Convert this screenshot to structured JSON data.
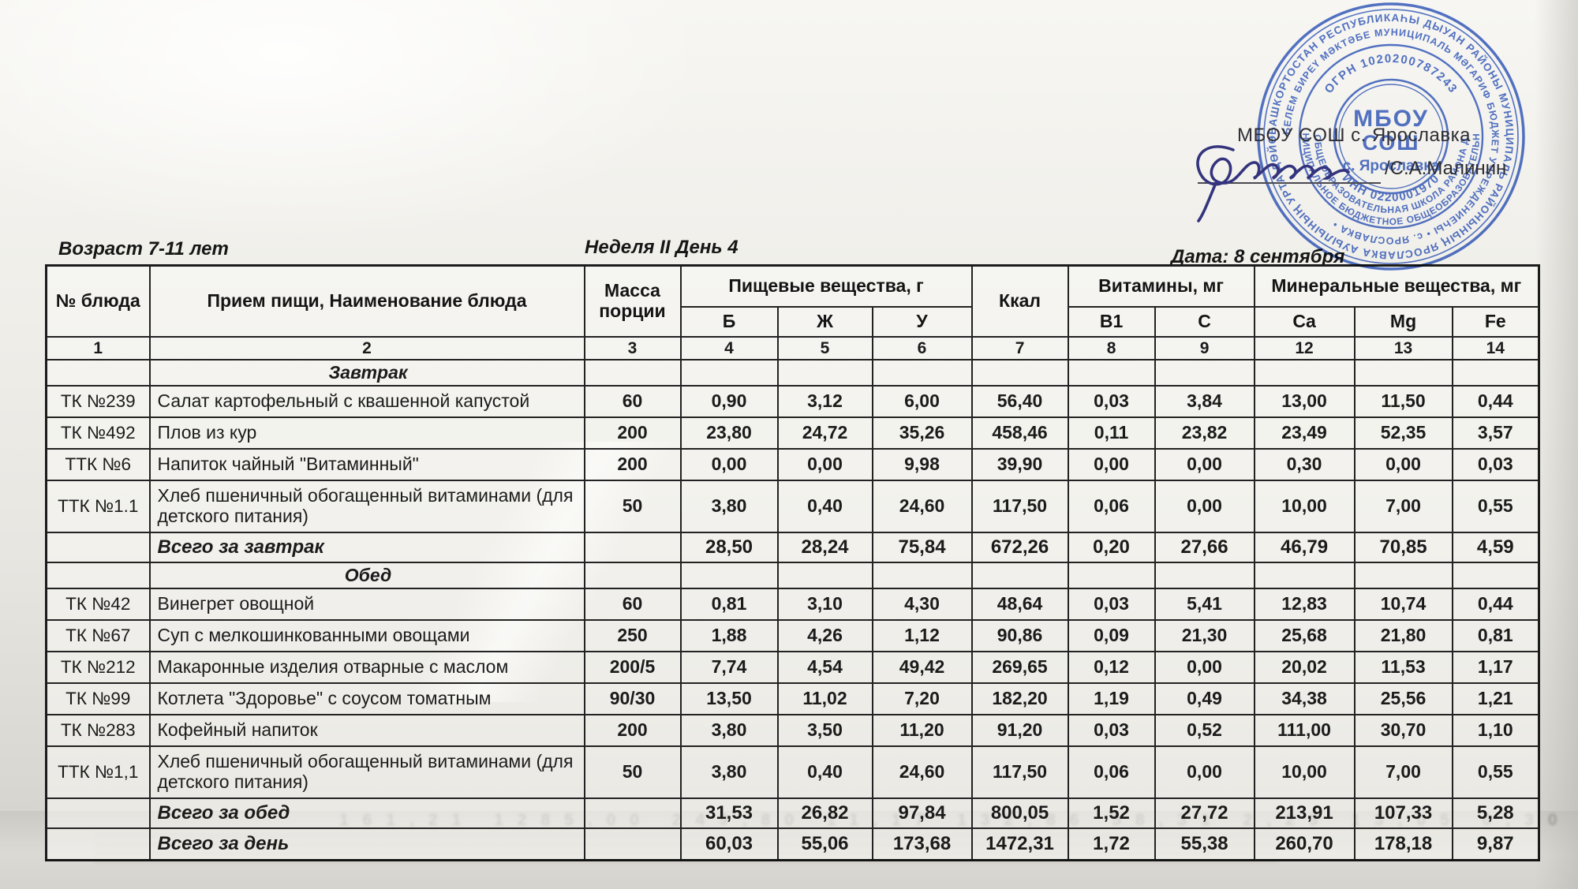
{
  "meta": {
    "age_label": "Возраст 7-11 лет",
    "week_label": "Неделя II  День 4",
    "date_label": "Дата: 8 сентября"
  },
  "signature_block": {
    "org_name": "МБОУ СОШ с. Ярославка",
    "signer_name": "/С.А.Малинин"
  },
  "stamp": {
    "center_line1": "МБОУ",
    "center_line2": "СОШ",
    "center_line3": "с. Ярославка",
    "ogrn": "ОГРН 1020200787243",
    "inn": "ИНН 0220001970",
    "outer_ring_text": "БАШКОРТОСТАН РЕСПУБЛИКАҺЫ ДЫУАН РАЙОНЫ МУНИЦИПАЛЬ РАЙОНЫНЫҢ ЯРОСЛАВКА АУЫЛЫНЫҢ УРТА ДӨЙӨМ",
    "second_ring_text": "БЕЛЕМ БИРЕҮ МӘКТӘБЕ МУНИЦИПАЛЬ МӘГАРИФ БЮДЖЕТ УЧРЕЖДЕНИЕҺЫ  •  с. ЯРОСЛАВКА  •",
    "bottom_arc1": "МУНИЦИПАЛЬНОЕ БЮДЖЕТНОЕ ОБЩЕОБРАЗОВАТЕЛЬНОЕ",
    "bottom_arc2": "СРЕДНЯЯ ОБЩЕОБРАЗОВАТЕЛЬНАЯ ШКОЛА РАЙОНА ДУВАНСКИЙ"
  },
  "table": {
    "headers": {
      "col_dish_no": "№ блюда",
      "col_meal": "Прием пищи, Наименование блюда",
      "col_mass_line1": "Масса",
      "col_mass_line2": "порции",
      "group_nutrients": "Пищевые вещества, г",
      "sub_b": "Б",
      "sub_zh": "Ж",
      "sub_u": "У",
      "col_kcal": "Ккал",
      "group_vitamins": "Витамины, мг",
      "sub_b1": "В1",
      "sub_c": "С",
      "group_minerals": "Минеральные вещества, мг",
      "sub_ca": "Ca",
      "sub_mg": "Mg",
      "sub_fe": "Fe"
    },
    "column_numbers": [
      "1",
      "2",
      "3",
      "4",
      "5",
      "6",
      "7",
      "8",
      "9",
      "12",
      "13",
      "14"
    ],
    "rows": [
      {
        "type": "section",
        "label": "Завтрак"
      },
      {
        "type": "dish",
        "code": "ТК №239",
        "name": "Салат картофельный с квашенной капустой",
        "values": [
          "60",
          "0,90",
          "3,12",
          "6,00",
          "56,40",
          "0,03",
          "3,84",
          "13,00",
          "11,50",
          "0,44"
        ]
      },
      {
        "type": "dish",
        "code": "ТК №492",
        "name": "Плов из кур",
        "values": [
          "200",
          "23,80",
          "24,72",
          "35,26",
          "458,46",
          "0,11",
          "23,82",
          "23,49",
          "52,35",
          "3,57"
        ]
      },
      {
        "type": "dish",
        "code": "ТТК №6",
        "name": "Напиток чайный \"Витаминный\"",
        "values": [
          "200",
          "0,00",
          "0,00",
          "9,98",
          "39,90",
          "0,00",
          "0,00",
          "0,30",
          "0,00",
          "0,03"
        ]
      },
      {
        "type": "dish",
        "tall": true,
        "code": "ТТК №1.1",
        "name": "Хлеб пшеничный обогащенный витаминами (для детского питания)",
        "values": [
          "50",
          "3,80",
          "0,40",
          "24,60",
          "117,50",
          "0,06",
          "0,00",
          "10,00",
          "7,00",
          "0,55"
        ]
      },
      {
        "type": "total",
        "label": "Всего за завтрак",
        "values": [
          "",
          "28,50",
          "28,24",
          "75,84",
          "672,26",
          "0,20",
          "27,66",
          "46,79",
          "70,85",
          "4,59"
        ]
      },
      {
        "type": "section",
        "label": "Обед"
      },
      {
        "type": "dish",
        "code": "ТК №42",
        "name": "Винегрет овощной",
        "values": [
          "60",
          "0,81",
          "3,10",
          "4,30",
          "48,64",
          "0,03",
          "5,41",
          "12,83",
          "10,74",
          "0,44"
        ]
      },
      {
        "type": "dish",
        "code": "ТК №67",
        "name": "Суп с мелкошинкованными овощами",
        "values": [
          "250",
          "1,88",
          "4,26",
          "1,12",
          "90,86",
          "0,09",
          "21,30",
          "25,68",
          "21,80",
          "0,81"
        ]
      },
      {
        "type": "dish",
        "code": "ТК №212",
        "name": "Макаронные изделия отварные с маслом",
        "values": [
          "200/5",
          "7,74",
          "4,54",
          "49,42",
          "269,65",
          "0,12",
          "0,00",
          "20,02",
          "11,53",
          "1,17"
        ]
      },
      {
        "type": "dish",
        "code": "ТК №99",
        "name": "Котлета \"Здоровье\" с соусом томатным",
        "values": [
          "90/30",
          "13,50",
          "11,02",
          "7,20",
          "182,20",
          "1,19",
          "0,49",
          "34,38",
          "25,56",
          "1,21"
        ]
      },
      {
        "type": "dish",
        "code": "ТК №283",
        "name": "Кофейный напиток",
        "values": [
          "200",
          "3,80",
          "3,50",
          "11,20",
          "91,20",
          "0,03",
          "0,52",
          "111,00",
          "30,70",
          "1,10"
        ]
      },
      {
        "type": "dish",
        "tall": true,
        "code": "ТТК №1,1",
        "name": "Хлеб пшеничный обогащенный витаминами (для детского питания)",
        "values": [
          "50",
          "3,80",
          "0,40",
          "24,60",
          "117,50",
          "0,06",
          "0,00",
          "10,00",
          "7,00",
          "0,55"
        ]
      },
      {
        "type": "total",
        "label": "Всего за обед",
        "values": [
          "",
          "31,53",
          "26,82",
          "97,84",
          "800,05",
          "1,52",
          "27,72",
          "213,91",
          "107,33",
          "5,28"
        ]
      },
      {
        "type": "total",
        "emphasis": true,
        "label": "Всего за день",
        "values": [
          "",
          "60,03",
          "55,06",
          "173,68",
          "1472,31",
          "1,72",
          "55,38",
          "260,70",
          "178,18",
          "9,87"
        ]
      }
    ]
  },
  "scan_artifacts": {
    "ghost_numbers": "161,21  1285,00  249,80  11,17  132,86  58,31  2,23  13,05  0,30"
  }
}
